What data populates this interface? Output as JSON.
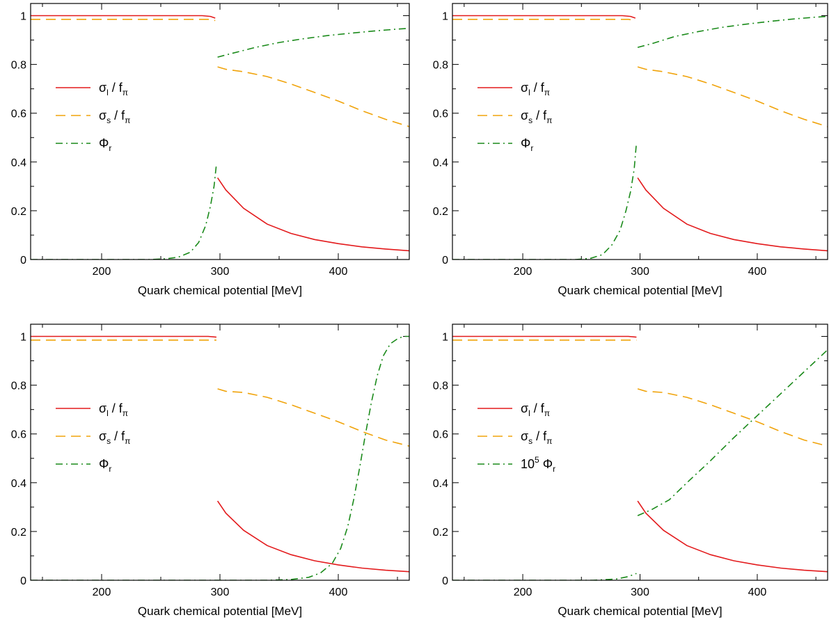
{
  "chart_data": [
    {
      "type": "line",
      "xlabel": "Quark chemical potential   [MeV]",
      "ylabel": "",
      "xlim": [
        140,
        460
      ],
      "ylim": [
        0,
        1.05
      ],
      "xticks": [
        "200",
        "300",
        "400"
      ],
      "yticks": [
        "0",
        "0.2",
        "0.4",
        "0.6",
        "0.8",
        "1"
      ],
      "legend_position": "center-left",
      "series": [
        {
          "name": "σl / fπ",
          "legend_main": "σ",
          "legend_sub": "l",
          "legend_tail": " / f",
          "legend_tail_sub": "π",
          "legend_sup": "",
          "color": "#e31a1c",
          "style": "solid",
          "segments": [
            [
              [
                140,
                1.0
              ],
              [
                285,
                1.0
              ],
              [
                292,
                0.997
              ],
              [
                296,
                0.99
              ]
            ],
            [
              [
                298,
                0.335
              ],
              [
                305,
                0.285
              ],
              [
                320,
                0.21
              ],
              [
                340,
                0.145
              ],
              [
                360,
                0.107
              ],
              [
                380,
                0.082
              ],
              [
                400,
                0.065
              ],
              [
                420,
                0.052
              ],
              [
                440,
                0.043
              ],
              [
                460,
                0.036
              ]
            ]
          ]
        },
        {
          "name": "σs / fπ",
          "legend_main": "σ",
          "legend_sub": "s",
          "legend_tail": " / f",
          "legend_tail_sub": "π",
          "legend_sup": "",
          "color": "#f0a30a",
          "style": "dashed",
          "segments": [
            [
              [
                140,
                0.985
              ],
              [
                290,
                0.985
              ],
              [
                296,
                0.98
              ]
            ],
            [
              [
                298,
                0.79
              ],
              [
                305,
                0.78
              ],
              [
                320,
                0.77
              ],
              [
                340,
                0.75
              ],
              [
                360,
                0.72
              ],
              [
                380,
                0.685
              ],
              [
                400,
                0.65
              ],
              [
                420,
                0.61
              ],
              [
                440,
                0.575
              ],
              [
                460,
                0.545
              ]
            ]
          ]
        },
        {
          "name": "Φr",
          "legend_main": "Φ",
          "legend_sub": "r",
          "legend_tail": "",
          "legend_tail_sub": "",
          "legend_sup": "",
          "color": "#1a8a1a",
          "style": "dashdot",
          "segments": [
            [
              [
                140,
                0.0
              ],
              [
                240,
                0.0
              ],
              [
                255,
                0.003
              ],
              [
                265,
                0.01
              ],
              [
                275,
                0.03
              ],
              [
                282,
                0.07
              ],
              [
                288,
                0.14
              ],
              [
                292,
                0.22
              ],
              [
                295,
                0.3
              ],
              [
                297,
                0.39
              ]
            ],
            [
              [
                298,
                0.83
              ],
              [
                310,
                0.845
              ],
              [
                330,
                0.87
              ],
              [
                350,
                0.89
              ],
              [
                370,
                0.905
              ],
              [
                390,
                0.918
              ],
              [
                410,
                0.928
              ],
              [
                430,
                0.937
              ],
              [
                450,
                0.945
              ],
              [
                460,
                0.948
              ]
            ]
          ]
        }
      ]
    },
    {
      "type": "line",
      "xlabel": "Quark chemical potential   [MeV]",
      "ylabel": "",
      "xlim": [
        140,
        460
      ],
      "ylim": [
        0,
        1.05
      ],
      "xticks": [
        "200",
        "300",
        "400"
      ],
      "yticks": [
        "0",
        "0.2",
        "0.4",
        "0.6",
        "0.8",
        "1"
      ],
      "legend_position": "center-left",
      "series": [
        {
          "name": "σl / fπ",
          "legend_main": "σ",
          "legend_sub": "l",
          "legend_tail": " / f",
          "legend_tail_sub": "π",
          "legend_sup": "",
          "color": "#e31a1c",
          "style": "solid",
          "segments": [
            [
              [
                140,
                1.0
              ],
              [
                285,
                1.0
              ],
              [
                292,
                0.997
              ],
              [
                296,
                0.99
              ]
            ],
            [
              [
                298,
                0.335
              ],
              [
                305,
                0.285
              ],
              [
                320,
                0.21
              ],
              [
                340,
                0.145
              ],
              [
                360,
                0.107
              ],
              [
                380,
                0.082
              ],
              [
                400,
                0.065
              ],
              [
                420,
                0.052
              ],
              [
                440,
                0.043
              ],
              [
                460,
                0.036
              ]
            ]
          ]
        },
        {
          "name": "σs / fπ",
          "legend_main": "σ",
          "legend_sub": "s",
          "legend_tail": " / f",
          "legend_tail_sub": "π",
          "legend_sup": "",
          "color": "#f0a30a",
          "style": "dashed",
          "segments": [
            [
              [
                140,
                0.985
              ],
              [
                290,
                0.985
              ],
              [
                296,
                0.98
              ]
            ],
            [
              [
                298,
                0.79
              ],
              [
                305,
                0.78
              ],
              [
                320,
                0.77
              ],
              [
                340,
                0.75
              ],
              [
                360,
                0.72
              ],
              [
                380,
                0.685
              ],
              [
                400,
                0.65
              ],
              [
                420,
                0.61
              ],
              [
                440,
                0.575
              ],
              [
                460,
                0.545
              ]
            ]
          ]
        },
        {
          "name": "Φr",
          "legend_main": "Φ",
          "legend_sub": "r",
          "legend_tail": "",
          "legend_tail_sub": "",
          "legend_sup": "",
          "color": "#1a8a1a",
          "style": "dashdot",
          "segments": [
            [
              [
                140,
                0.0
              ],
              [
                245,
                0.0
              ],
              [
                258,
                0.005
              ],
              [
                268,
                0.02
              ],
              [
                276,
                0.06
              ],
              [
                283,
                0.12
              ],
              [
                288,
                0.2
              ],
              [
                292,
                0.28
              ],
              [
                295,
                0.37
              ],
              [
                297,
                0.48
              ]
            ],
            [
              [
                298,
                0.87
              ],
              [
                310,
                0.885
              ],
              [
                330,
                0.915
              ],
              [
                350,
                0.935
              ],
              [
                370,
                0.952
              ],
              [
                390,
                0.965
              ],
              [
                410,
                0.976
              ],
              [
                430,
                0.986
              ],
              [
                450,
                0.994
              ],
              [
                460,
                0.997
              ]
            ]
          ]
        }
      ]
    },
    {
      "type": "line",
      "xlabel": "Quark chemical potential   [MeV]",
      "ylabel": "",
      "xlim": [
        140,
        460
      ],
      "ylim": [
        0,
        1.05
      ],
      "xticks": [
        "200",
        "300",
        "400"
      ],
      "yticks": [
        "0",
        "0.2",
        "0.4",
        "0.6",
        "0.8",
        "1"
      ],
      "legend_position": "center-left",
      "series": [
        {
          "name": "σl / fπ",
          "legend_main": "σ",
          "legend_sub": "l",
          "legend_tail": " / f",
          "legend_tail_sub": "π",
          "legend_sup": "",
          "color": "#e31a1c",
          "style": "solid",
          "segments": [
            [
              [
                140,
                1.0
              ],
              [
                290,
                1.0
              ],
              [
                297,
                0.997
              ]
            ],
            [
              [
                298,
                0.325
              ],
              [
                305,
                0.275
              ],
              [
                320,
                0.205
              ],
              [
                340,
                0.142
              ],
              [
                360,
                0.105
              ],
              [
                380,
                0.08
              ],
              [
                400,
                0.063
              ],
              [
                420,
                0.05
              ],
              [
                440,
                0.041
              ],
              [
                460,
                0.035
              ]
            ]
          ]
        },
        {
          "name": "σs / fπ",
          "legend_main": "σ",
          "legend_sub": "s",
          "legend_tail": " / f",
          "legend_tail_sub": "π",
          "legend_sup": "",
          "color": "#f0a30a",
          "style": "dashed",
          "segments": [
            [
              [
                140,
                0.985
              ],
              [
                297,
                0.985
              ]
            ],
            [
              [
                298,
                0.785
              ],
              [
                305,
                0.775
              ],
              [
                320,
                0.77
              ],
              [
                340,
                0.75
              ],
              [
                360,
                0.72
              ],
              [
                380,
                0.685
              ],
              [
                400,
                0.65
              ],
              [
                420,
                0.61
              ],
              [
                440,
                0.575
              ],
              [
                460,
                0.55
              ]
            ]
          ]
        },
        {
          "name": "Φr",
          "legend_main": "Φ",
          "legend_sub": "r",
          "legend_tail": "",
          "legend_tail_sub": "",
          "legend_sup": "",
          "color": "#1a8a1a",
          "style": "dashdot",
          "segments": [
            [
              [
                140,
                0.0
              ],
              [
                340,
                0.0
              ],
              [
                360,
                0.003
              ],
              [
                375,
                0.012
              ],
              [
                385,
                0.03
              ],
              [
                395,
                0.07
              ],
              [
                402,
                0.13
              ],
              [
                408,
                0.22
              ],
              [
                413,
                0.33
              ],
              [
                418,
                0.46
              ],
              [
                423,
                0.6
              ],
              [
                428,
                0.73
              ],
              [
                433,
                0.84
              ],
              [
                438,
                0.92
              ],
              [
                444,
                0.97
              ],
              [
                450,
                0.99
              ],
              [
                455,
                1.0
              ],
              [
                460,
                1.0
              ]
            ]
          ]
        }
      ]
    },
    {
      "type": "line",
      "xlabel": "Quark chemical potential   [MeV]",
      "ylabel": "",
      "xlim": [
        140,
        460
      ],
      "ylim": [
        0,
        1.05
      ],
      "xticks": [
        "200",
        "300",
        "400"
      ],
      "yticks": [
        "0",
        "0.2",
        "0.4",
        "0.6",
        "0.8",
        "1"
      ],
      "legend_position": "center-left",
      "series": [
        {
          "name": "σl / fπ",
          "legend_main": "σ",
          "legend_sub": "l",
          "legend_tail": " / f",
          "legend_tail_sub": "π",
          "legend_sup": "",
          "color": "#e31a1c",
          "style": "solid",
          "segments": [
            [
              [
                140,
                1.0
              ],
              [
                290,
                1.0
              ],
              [
                297,
                0.997
              ]
            ],
            [
              [
                298,
                0.325
              ],
              [
                305,
                0.275
              ],
              [
                320,
                0.205
              ],
              [
                340,
                0.142
              ],
              [
                360,
                0.105
              ],
              [
                380,
                0.08
              ],
              [
                400,
                0.063
              ],
              [
                420,
                0.05
              ],
              [
                440,
                0.041
              ],
              [
                460,
                0.035
              ]
            ]
          ]
        },
        {
          "name": "σs / fπ",
          "legend_main": "σ",
          "legend_sub": "s",
          "legend_tail": " / f",
          "legend_tail_sub": "π",
          "legend_sup": "",
          "color": "#f0a30a",
          "style": "dashed",
          "segments": [
            [
              [
                140,
                0.985
              ],
              [
                297,
                0.985
              ]
            ],
            [
              [
                298,
                0.785
              ],
              [
                305,
                0.775
              ],
              [
                320,
                0.77
              ],
              [
                340,
                0.75
              ],
              [
                360,
                0.72
              ],
              [
                380,
                0.685
              ],
              [
                400,
                0.65
              ],
              [
                420,
                0.61
              ],
              [
                440,
                0.575
              ],
              [
                460,
                0.55
              ]
            ]
          ]
        },
        {
          "name": "10⁵ Φr",
          "legend_main": "Φ",
          "legend_sub": "r",
          "legend_tail": "",
          "legend_tail_sub": "",
          "legend_sup": "10",
          "legend_sup_exp": "5",
          "color": "#1a8a1a",
          "style": "dashdot",
          "segments": [
            [
              [
                140,
                0.0
              ],
              [
                260,
                0.0
              ],
              [
                280,
                0.005
              ],
              [
                290,
                0.015
              ],
              [
                297,
                0.028
              ]
            ],
            [
              [
                298,
                0.265
              ],
              [
                310,
                0.29
              ],
              [
                325,
                0.33
              ],
              [
                340,
                0.4
              ],
              [
                360,
                0.49
              ],
              [
                380,
                0.585
              ],
              [
                400,
                0.675
              ],
              [
                420,
                0.765
              ],
              [
                440,
                0.855
              ],
              [
                460,
                0.945
              ]
            ]
          ]
        }
      ]
    }
  ]
}
